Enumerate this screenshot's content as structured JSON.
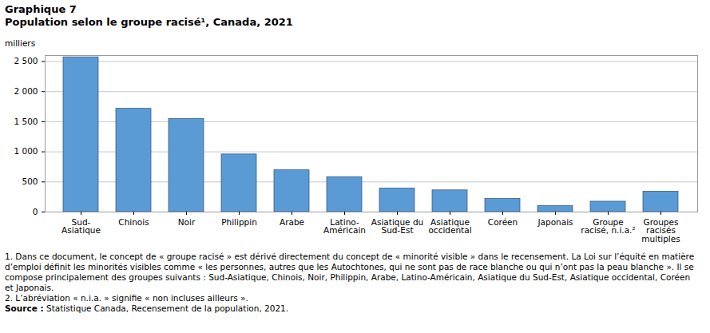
{
  "chart_data": {
    "type": "bar",
    "title": "Graphique 7",
    "subtitle": "Population selon le groupe racisé¹, Canada, 2021",
    "y_label": "milliers",
    "categories": [
      "Sud-Asiatique",
      "Chinois",
      "Noir",
      "Philippin",
      "Arabe",
      "Latino-Américain",
      "Asiatique du Sud-Est",
      "Asiatique occidental",
      "Coréen",
      "Japonais",
      "Groupe racisé, n.i.a.²",
      "Groupes racisés multiples"
    ],
    "values": [
      2571.4,
      1715.8,
      1547.9,
      957.4,
      694.0,
      580.2,
      390.3,
      360.5,
      218.1,
      98.9,
      172.9,
      339.5
    ],
    "color": "#5b9bd5",
    "ylim": [
      0,
      2600
    ],
    "yticks": [
      0,
      500,
      {
        "value": 1000,
        "label": "1 000"
      },
      {
        "value": 1500,
        "label": "1 500"
      },
      {
        "value": 2000,
        "label": "2 000"
      },
      {
        "value": 2500,
        "label": "2 500"
      }
    ],
    "grid": true,
    "notes": [
      "1. Dans ce document, le concept de « groupe racisé » est dérivé directement du concept de « minorité visible » dans le recensement. La Loi sur l’équité en matière d’emploi définit les minorités visibles comme « les personnes, autres que les Autochtones, qui ne sont pas de race blanche ou qui n’ont pas la peau blanche ». Il se compose principalement des groupes suivants : Sud-Asiatique, Chinois, Noir, Philippin, Arabe, Latino-Américain, Asiatique du Sud-Est, Asiatique occidental, Coréen et Japonais.",
      "2. L’abréviation « n.i.a. » signifie « non incluses ailleurs »."
    ],
    "source": {
      "label": "Source :",
      "text": "Statistique Canada, Recensement de la population, 2021."
    }
  }
}
